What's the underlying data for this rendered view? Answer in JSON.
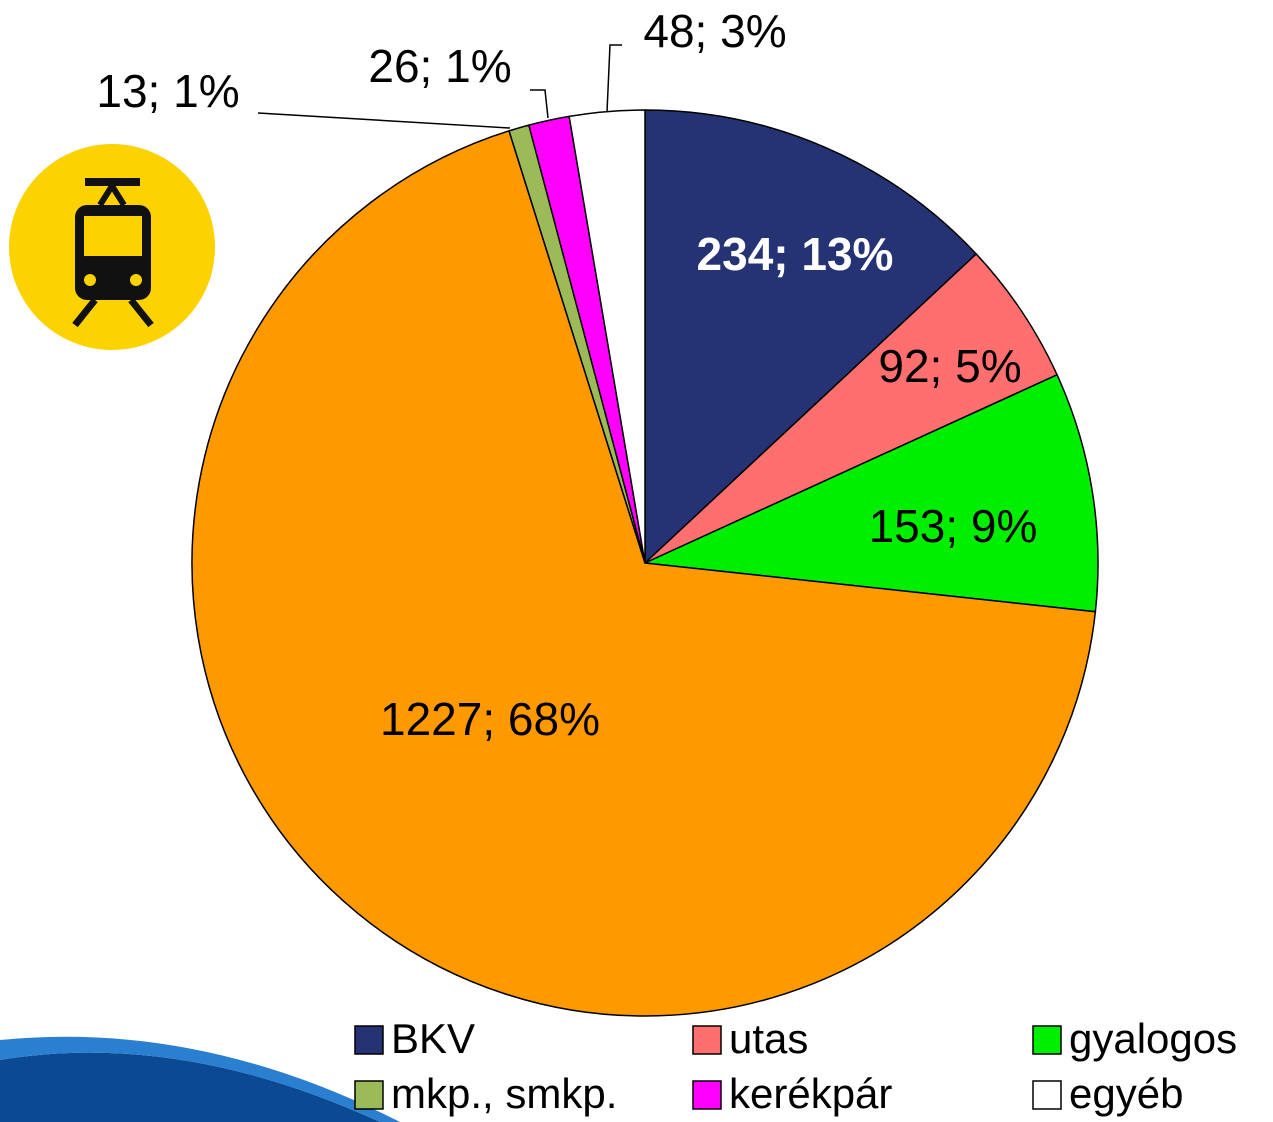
{
  "chart_data": {
    "type": "pie",
    "categories": [
      "BKV",
      "utas",
      "gyalogos",
      null,
      "mkp., smkp.",
      "kerékpár",
      "egyéb"
    ],
    "values": [
      234,
      92,
      153,
      1227,
      13,
      26,
      48
    ],
    "value_labels": [
      "234; 13%",
      "92; 5%",
      "153; 9%",
      "1227; 68%",
      "13; 1%",
      "26; 1%",
      "48; 3%"
    ],
    "colors": [
      "#253374",
      "#ff6f6f",
      "#00ee00",
      "#ff9900",
      "#9bbb59",
      "#ff00ff",
      "#ffffff"
    ],
    "legend": "bottom"
  }
}
